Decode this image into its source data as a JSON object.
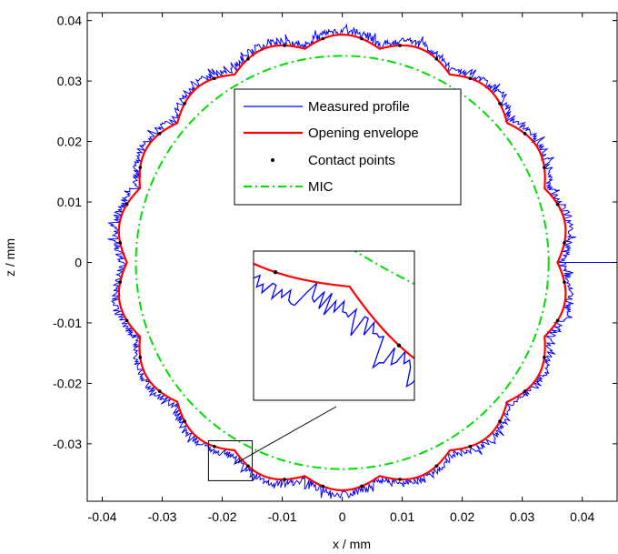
{
  "chart_data": {
    "type": "line",
    "title": "",
    "xlabel": "x / mm",
    "ylabel": "z / mm",
    "xlim": [
      -0.0425,
      0.0458
    ],
    "ylim": [
      -0.0395,
      0.0413
    ],
    "xticks": [
      -0.04,
      -0.03,
      -0.02,
      -0.01,
      0,
      0.01,
      0.02,
      0.03,
      0.04
    ],
    "xtick_labels": [
      "-0.04",
      "-0.03",
      "-0.02",
      "-0.01",
      "0",
      "0.01",
      "0.02",
      "0.03",
      "0.04"
    ],
    "yticks": [
      0.04,
      0.03,
      0.02,
      0.01,
      0,
      -0.01,
      -0.02,
      -0.03
    ],
    "ytick_labels": [
      "0.04",
      "0.03",
      "0.02",
      "0.01",
      "0",
      "-0.01",
      "-0.02",
      "-0.03"
    ],
    "grid": false,
    "legend_position": "top-center",
    "series": [
      {
        "name": "Measured profile",
        "color": "#0000ff",
        "style": "solid",
        "shape": "lobed circle with high-frequency noise",
        "mean_radius": 0.0373,
        "lobes": 18,
        "lobe_amplitude": 0.0017,
        "noise_amplitude": 0.0013,
        "spike_at": [
          0.0458,
          0.0
        ]
      },
      {
        "name": "Opening envelope",
        "color": "#ff0000",
        "style": "solid",
        "shape": "scalloped envelope over the profile",
        "mean_radius": 0.0366,
        "lobes": 18,
        "lobe_amplitude": 0.0018
      },
      {
        "name": "Contact points",
        "color": "#000000",
        "style": "markers",
        "count": 36
      },
      {
        "name": "MIC",
        "color": "#00dd00",
        "style": "dash-dot",
        "center": [
          0.0,
          0.0
        ],
        "radius": 0.0344
      }
    ],
    "inset": {
      "description": "zoom of region near (-0.0186, -0.0327)",
      "region_x": [
        -0.0223,
        -0.015
      ],
      "region_y": [
        -0.0361,
        -0.0295
      ]
    }
  }
}
